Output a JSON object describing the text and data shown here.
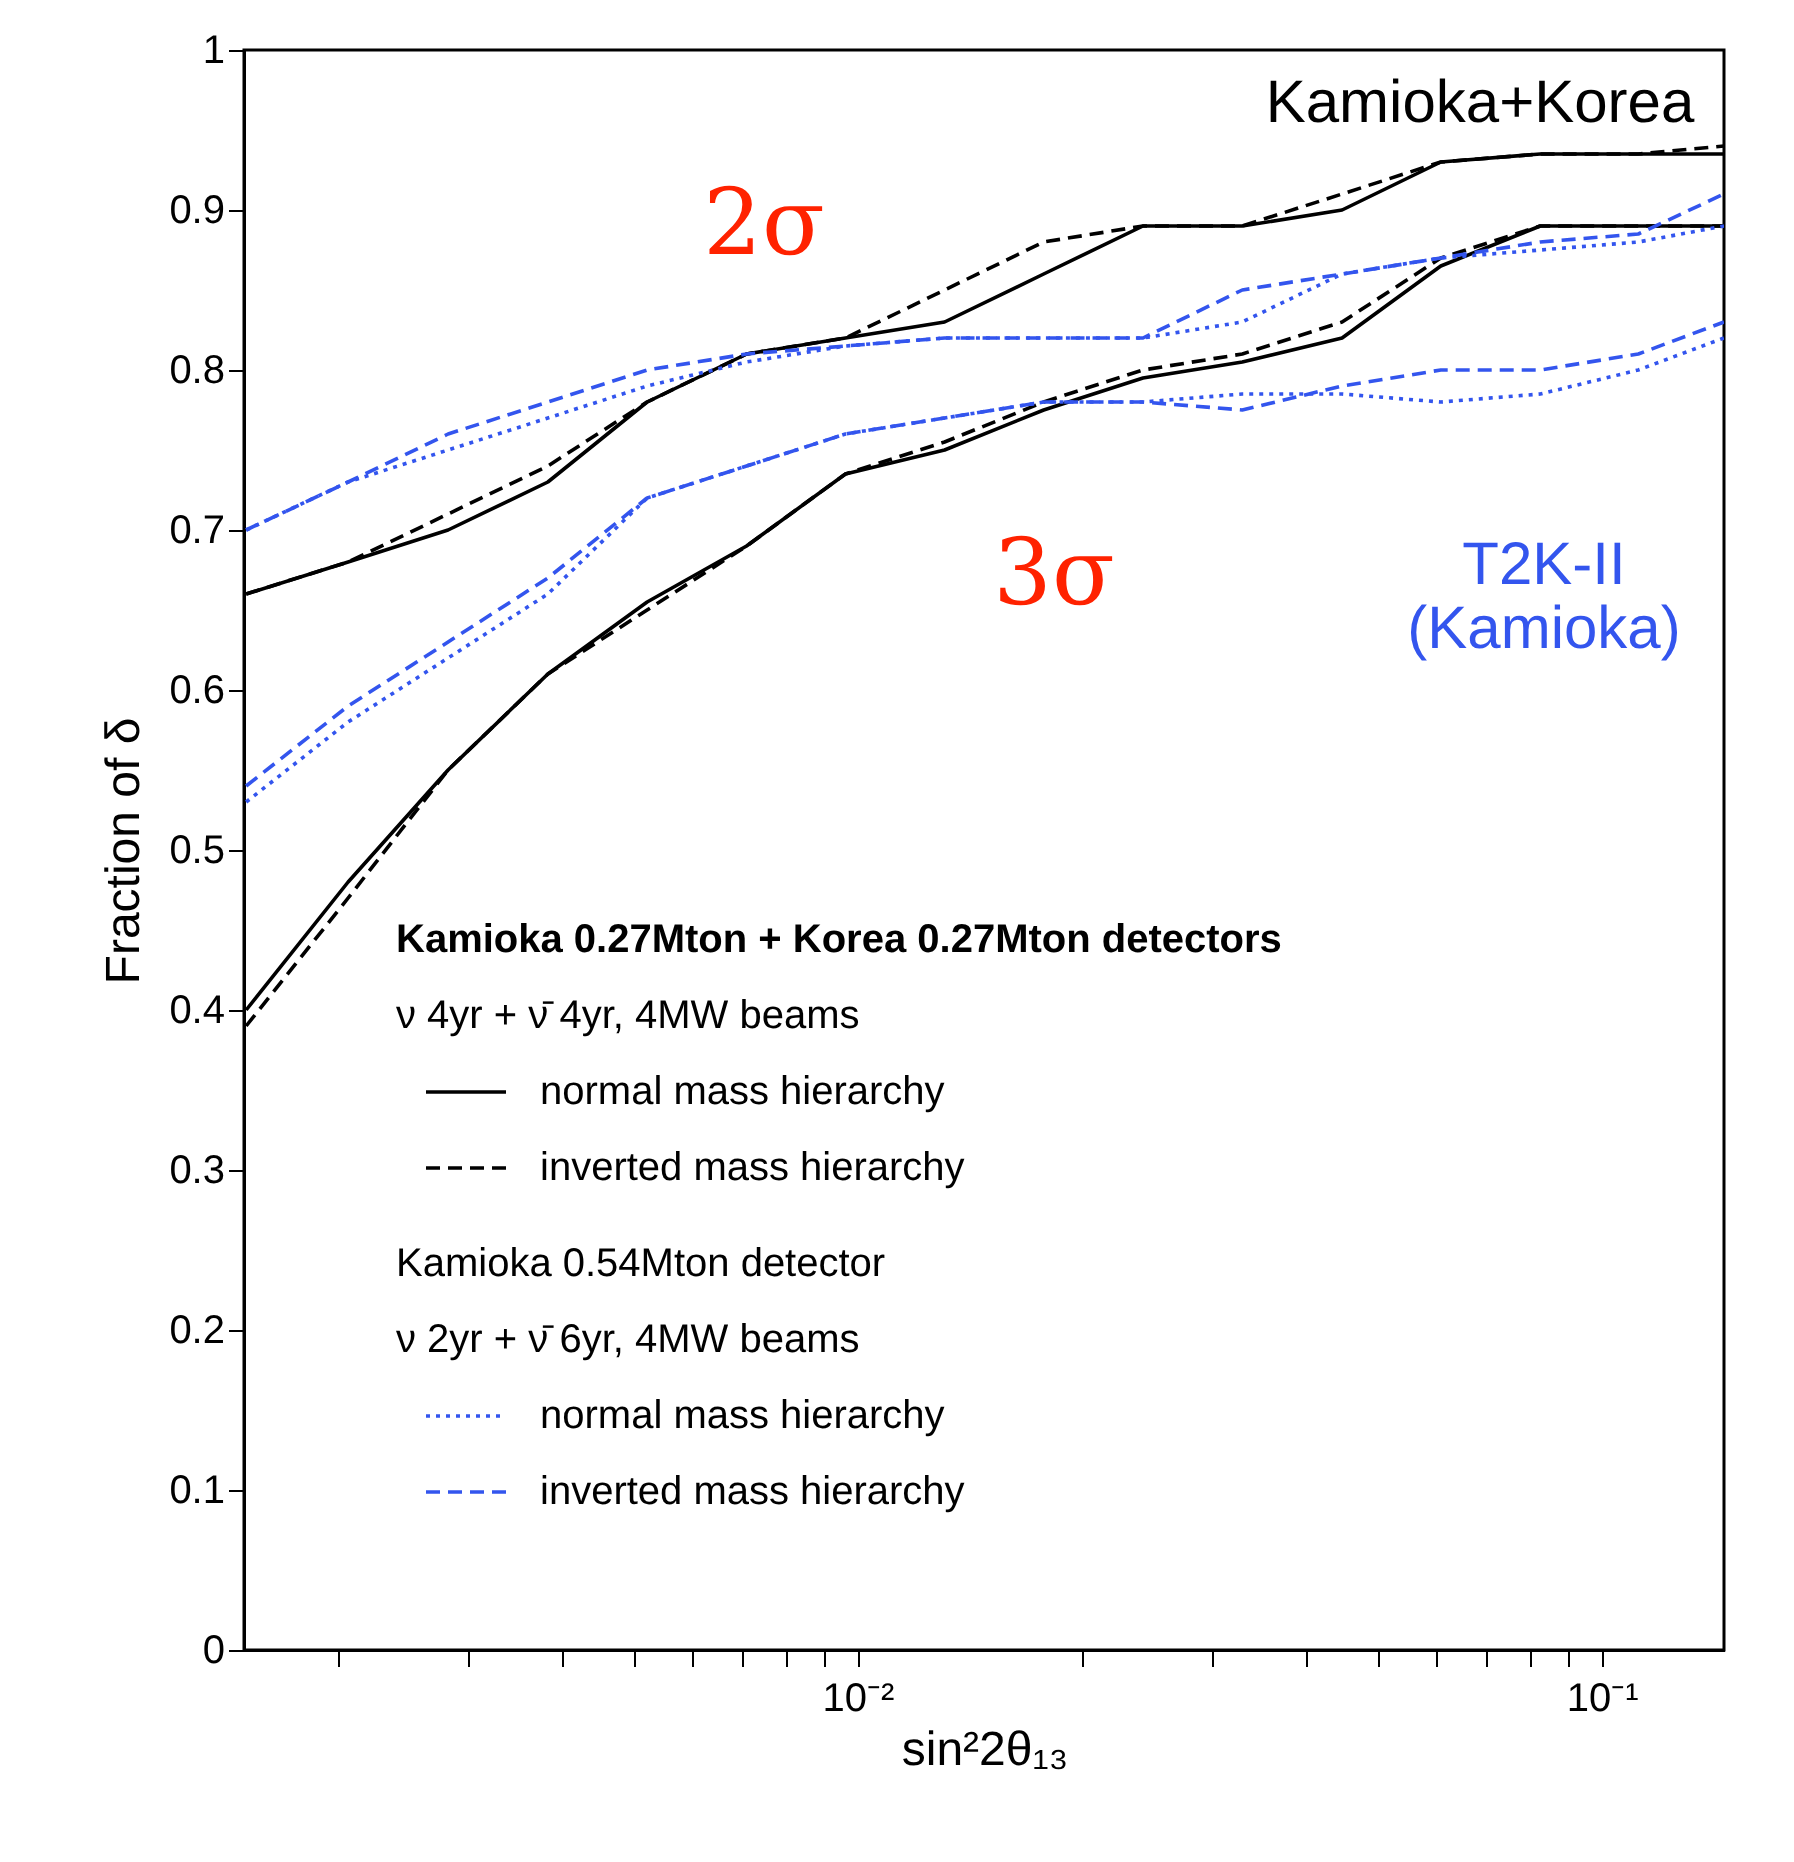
{
  "chart_data": {
    "type": "line",
    "xlabel": "sin²2θ₁₃",
    "ylabel": "Fraction of δ",
    "log": "x",
    "grid": false,
    "legend": "bottom",
    "marker": "none",
    "xlim": [
      0.0015,
      0.146
    ],
    "ylim": [
      0,
      1
    ],
    "xticks": [
      {
        "value": 0.002,
        "label": null
      },
      {
        "value": 0.003,
        "label": null
      },
      {
        "value": 0.004,
        "label": null
      },
      {
        "value": 0.005,
        "label": null
      },
      {
        "value": 0.006,
        "label": null
      },
      {
        "value": 0.007,
        "label": null
      },
      {
        "value": 0.008,
        "label": null
      },
      {
        "value": 0.009,
        "label": null
      },
      {
        "value": 0.01,
        "label": "10⁻²"
      },
      {
        "value": 0.02,
        "label": null
      },
      {
        "value": 0.03,
        "label": null
      },
      {
        "value": 0.04,
        "label": null
      },
      {
        "value": 0.05,
        "label": null
      },
      {
        "value": 0.06,
        "label": null
      },
      {
        "value": 0.07,
        "label": null
      },
      {
        "value": 0.08,
        "label": null
      },
      {
        "value": 0.09,
        "label": null
      },
      {
        "value": 0.1,
        "label": "10⁻¹"
      }
    ],
    "yticks": [
      0,
      0.1,
      0.2,
      0.3,
      0.4,
      0.5,
      0.6,
      0.7,
      0.8,
      0.9,
      1
    ],
    "x": [
      0.00151,
      0.00207,
      0.00282,
      0.00384,
      0.00522,
      0.0071,
      0.00964,
      0.0131,
      0.0178,
      0.0242,
      0.0329,
      0.0448,
      0.0608,
      0.0827,
      0.112,
      0.146
    ],
    "series": [
      {
        "name": "normal mass hierarchy",
        "color": "#000000",
        "line_style": "solid",
        "values": [
          0.66,
          0.68,
          0.7,
          0.73,
          0.78,
          0.81,
          0.82,
          0.83,
          0.86,
          0.89,
          0.89,
          0.9,
          0.93,
          0.935,
          0.935,
          0.935
        ]
      },
      {
        "name": "inverted mass hierarchy",
        "color": "#000000",
        "line_style": "dashed",
        "values": [
          0.66,
          0.68,
          0.71,
          0.74,
          0.78,
          0.81,
          0.82,
          0.85,
          0.88,
          0.89,
          0.89,
          0.91,
          0.93,
          0.935,
          0.935,
          0.94
        ]
      },
      {
        "color": "#000000",
        "line_style": "solid",
        "values": [
          0.4,
          0.48,
          0.55,
          0.61,
          0.655,
          0.69,
          0.735,
          0.75,
          0.775,
          0.795,
          0.805,
          0.82,
          0.865,
          0.89,
          0.89,
          0.89
        ]
      },
      {
        "color": "#000000",
        "line_style": "dashed",
        "values": [
          0.39,
          0.47,
          0.55,
          0.61,
          0.65,
          0.69,
          0.735,
          0.755,
          0.78,
          0.8,
          0.81,
          0.83,
          0.87,
          0.89,
          0.89,
          0.89
        ]
      },
      {
        "name": "normal mass hierarchy",
        "color": "#3355ee",
        "line_style": "dotted",
        "values": [
          0.7,
          0.73,
          0.75,
          0.77,
          0.79,
          0.805,
          0.815,
          0.82,
          0.82,
          0.82,
          0.83,
          0.86,
          0.87,
          0.875,
          0.88,
          0.89
        ]
      },
      {
        "name": "inverted mass hierarchy",
        "color": "#3355ee",
        "line_style": "dashed",
        "values": [
          0.7,
          0.73,
          0.76,
          0.78,
          0.8,
          0.81,
          0.815,
          0.82,
          0.82,
          0.82,
          0.85,
          0.86,
          0.87,
          0.88,
          0.885,
          0.91
        ]
      },
      {
        "color": "#3355ee",
        "line_style": "dotted",
        "values": [
          0.53,
          0.58,
          0.62,
          0.66,
          0.72,
          0.74,
          0.76,
          0.77,
          0.78,
          0.78,
          0.785,
          0.785,
          0.78,
          0.785,
          0.8,
          0.82
        ]
      },
      {
        "color": "#3355ee",
        "line_style": "dashed",
        "values": [
          0.54,
          0.59,
          0.63,
          0.67,
          0.72,
          0.74,
          0.76,
          0.77,
          0.78,
          0.78,
          0.775,
          0.79,
          0.8,
          0.8,
          0.81,
          0.83
        ]
      }
    ],
    "annotations": [
      "2σ",
      "3σ",
      "Kamioka+Korea",
      "T2K-II\n(Kamioka)",
      "Kamioka 0.27Mton + Korea 0.27Mton detectors",
      "ν 4yr + ν̄ 4yr, 4MW beams",
      "Kamioka 0.54Mton detector",
      "ν 2yr + ν̄ 6yr, 4MW beams"
    ]
  }
}
